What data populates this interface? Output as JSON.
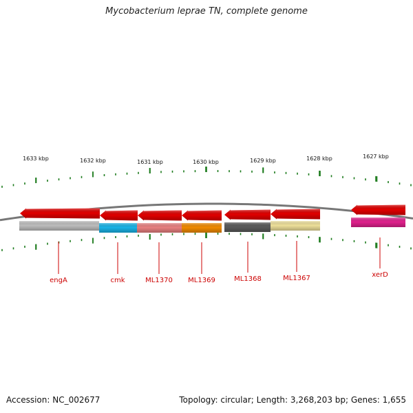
{
  "title": "Mycobacterium leprae TN, complete genome",
  "footer": {
    "accession": "Accession: NC_002677",
    "summary": "Topology: circular; Length: 3,268,203 bp; Genes: 1,655"
  },
  "colors": {
    "backbone": "#777777",
    "tick": "#1a7a1a",
    "cds_arrow": "#e00000",
    "label": "#cc0000"
  },
  "scale": {
    "unit": "kbp",
    "labels": [
      "1633 kbp",
      "1632 kbp",
      "1631 kbp",
      "1630 kbp",
      "1629 kbp",
      "1628 kbp",
      "1627 kbp"
    ]
  },
  "genes": [
    {
      "name": "engA",
      "cds_color": "#e00000",
      "feature_color": "#bdbdbd"
    },
    {
      "name": "cmk",
      "cds_color": "#e00000",
      "feature_color": "#19b3e6"
    },
    {
      "name": "ML1370",
      "cds_color": "#e00000",
      "feature_color": "#e88080"
    },
    {
      "name": "ML1369",
      "cds_color": "#e00000",
      "feature_color": "#f08a00"
    },
    {
      "name": "ML1368",
      "cds_color": "#e00000",
      "feature_color": "#5a5a5a"
    },
    {
      "name": "ML1367",
      "cds_color": "#e00000",
      "feature_color": "#eee09a"
    },
    {
      "name": "xerD",
      "cds_color": "#e00000",
      "feature_color": "#e0208c"
    }
  ]
}
